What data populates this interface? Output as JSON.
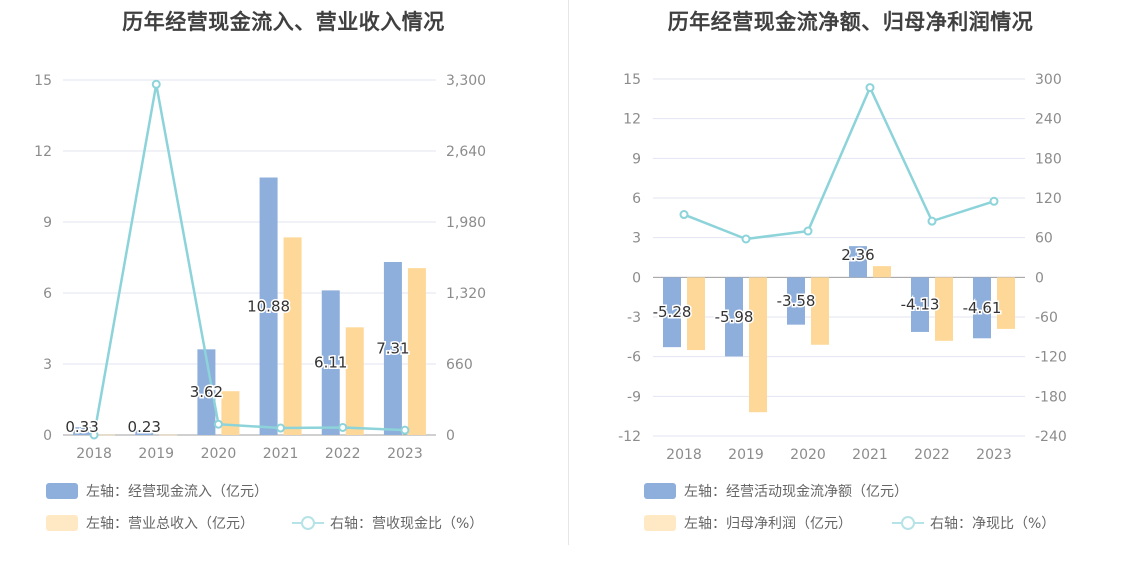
{
  "colors": {
    "bar1": "#8eafdc",
    "bar2": "#fed898",
    "line": "#8cd3da",
    "grid": "#e2e5f2",
    "axis": "#a0a0a0",
    "text": "#8c8c8c"
  },
  "charts": [
    {
      "title": "历年经营现金流入、营业收入情况",
      "legend": {
        "bar1": "左轴：经营现金流入（亿元）",
        "bar2": "左轴：营业总收入（亿元）",
        "line": "右轴：营收现金比（%）"
      }
    },
    {
      "title": "历年经营现金流净额、归母净利润情况",
      "legend": {
        "bar1": "左轴：经营活动现金流净额（亿元）",
        "bar2": "左轴：归母净利润（亿元）",
        "line": "右轴：净现比（%）"
      }
    }
  ],
  "chart_data": [
    {
      "type": "bar",
      "title": "历年经营现金流入、营业收入情况",
      "categories": [
        "2018",
        "2019",
        "2020",
        "2021",
        "2022",
        "2023"
      ],
      "left_axis": {
        "min": 0,
        "max": 15,
        "ticks": [
          "0",
          "3",
          "6",
          "9",
          "12",
          "15"
        ]
      },
      "right_axis": {
        "min": 0,
        "max": 3300,
        "ticks": [
          "0",
          "660",
          "1,320",
          "1,980",
          "2,640",
          "3,300"
        ]
      },
      "series": [
        {
          "name": "左轴：经营现金流入（亿元）",
          "kind": "bar",
          "axis": "left",
          "values": [
            0.33,
            0.23,
            3.62,
            10.88,
            6.11,
            7.31
          ],
          "labels": [
            "0.33",
            "0.23",
            "3.62",
            "10.88",
            "6.11",
            "7.31"
          ]
        },
        {
          "name": "左轴：营业总收入（亿元）",
          "kind": "bar",
          "axis": "left",
          "values": [
            0.01,
            0.01,
            1.85,
            8.35,
            4.55,
            7.05
          ]
        },
        {
          "name": "右轴：营收现金比（%）",
          "kind": "line",
          "axis": "right",
          "values": [
            0,
            3260,
            100,
            65,
            70,
            45
          ]
        }
      ]
    },
    {
      "type": "bar",
      "title": "历年经营现金流净额、归母净利润情况",
      "categories": [
        "2018",
        "2019",
        "2020",
        "2021",
        "2022",
        "2023"
      ],
      "left_axis": {
        "min": -12,
        "max": 15,
        "ticks": [
          "-12",
          "-9",
          "-6",
          "-3",
          "0",
          "3",
          "6",
          "9",
          "12",
          "15"
        ]
      },
      "right_axis": {
        "min": -240,
        "max": 300,
        "ticks": [
          "-240",
          "-180",
          "-120",
          "-60",
          "0",
          "60",
          "120",
          "180",
          "240",
          "300"
        ]
      },
      "series": [
        {
          "name": "左轴：经营活动现金流净额（亿元）",
          "kind": "bar",
          "axis": "left",
          "values": [
            -5.28,
            -5.98,
            -3.58,
            2.36,
            -4.13,
            -4.61
          ],
          "labels": [
            "-5.28",
            "-5.98",
            "-3.58",
            "2.36",
            "-4.13",
            "-4.61"
          ]
        },
        {
          "name": "左轴：归母净利润（亿元）",
          "kind": "bar",
          "axis": "left",
          "values": [
            -5.5,
            -10.2,
            -5.1,
            0.85,
            -4.8,
            -3.9
          ]
        },
        {
          "name": "右轴：净现比（%）",
          "kind": "line",
          "axis": "right",
          "values": [
            95,
            58,
            70,
            287,
            85,
            115
          ]
        }
      ]
    }
  ]
}
